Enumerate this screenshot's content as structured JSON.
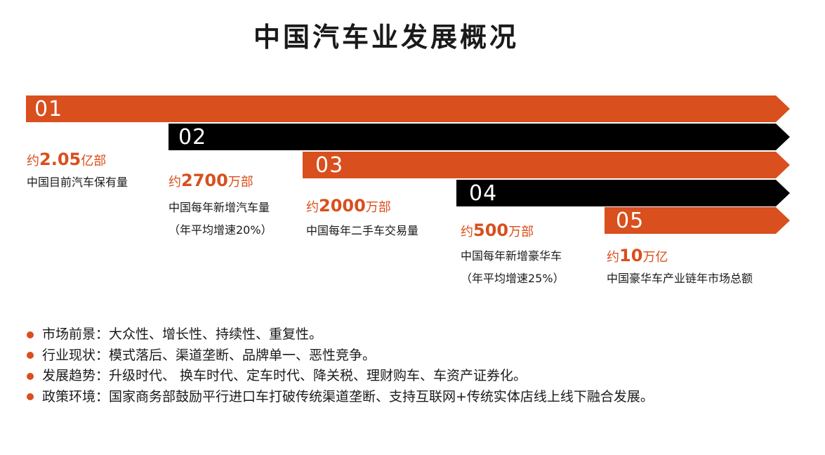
{
  "title": "中国汽车业发展概况",
  "colors": {
    "orange": "#d94f1d",
    "black": "#000000"
  },
  "items": [
    {
      "num": "01",
      "prefix": "约",
      "value": "2.05",
      "unit": "亿部",
      "desc": [
        "中国目前汽车保有量"
      ]
    },
    {
      "num": "02",
      "prefix": "约",
      "value": "2700",
      "unit": "万部",
      "desc": [
        "中国每年新增汽车量",
        "（年平均增速20%）"
      ]
    },
    {
      "num": "03",
      "prefix": "约",
      "value": "2000",
      "unit": "万部",
      "desc": [
        "中国每年二手车交易量"
      ]
    },
    {
      "num": "04",
      "prefix": "约",
      "value": "500",
      "unit": "万部",
      "desc": [
        "中国每年新增豪华车",
        "（年平均增速25%）"
      ]
    },
    {
      "num": "05",
      "prefix": "约",
      "value": "10",
      "unit": "万亿",
      "desc": [
        "中国豪华车产业链年市场总额"
      ]
    }
  ],
  "bullets": [
    "市场前景：大众性、增长性、持续性、重复性。",
    "行业现状：模式落后、渠道垄断、品牌单一、恶性竞争。",
    "发展趋势：升级时代、 换车时代、定车时代、降关税、理财购车、车资产证券化。",
    "政策环境：国家商务部鼓励平行进口车打破传统渠道垄断、支持互联网+传统实体店线上线下融合发展。"
  ]
}
